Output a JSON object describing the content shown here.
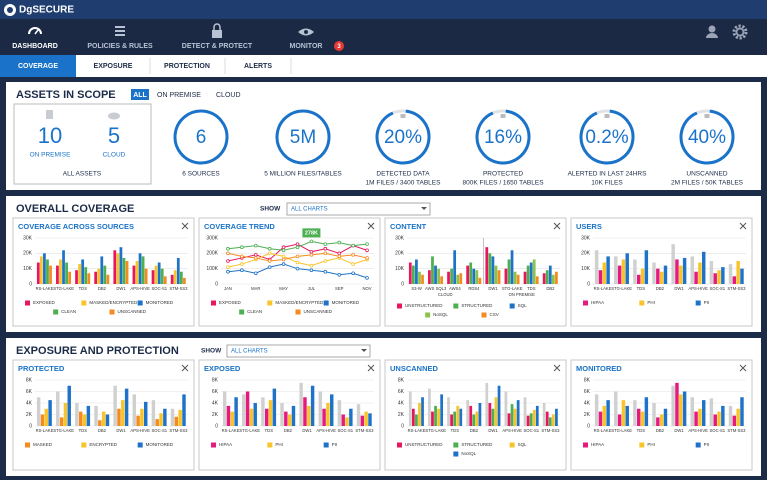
{
  "header": {
    "logo": "DgSECURE",
    "nav": [
      {
        "label": "DASHBOARD"
      },
      {
        "label": "POLICIES & RULES"
      },
      {
        "label": "DETECT & PROTECT"
      },
      {
        "label": "MONITOR",
        "badge": 3
      }
    ]
  },
  "tabs": [
    "COVERAGE",
    "EXPOSURE",
    "PROTECTION",
    "ALERTS"
  ],
  "assets": {
    "title": "ASSETS IN SCOPE",
    "filters": [
      "ALL",
      "ON PREMISE",
      "CLOUD"
    ],
    "on_premise": {
      "value": 10,
      "label": "ON PREMISE"
    },
    "cloud": {
      "value": 5,
      "label": "CLOUD"
    },
    "total_label": "ALL ASSETS",
    "metrics": [
      {
        "big": 6,
        "caption": "6 SOURCES"
      },
      {
        "big": "5M",
        "caption": "5 MILLION FILES/TABLES"
      },
      {
        "big": "20%",
        "caption": "DETECTED DATA",
        "detail": "1M FILES / 3400 TABLES"
      },
      {
        "big": "16%",
        "caption": "PROTECTED",
        "detail": "800K FILES / 1650 TABLES"
      },
      {
        "big": "0.2%",
        "caption": "ALERTED IN LAST 24HRS",
        "detail": "10K FILES"
      },
      {
        "big": "40%",
        "caption": "UNSCANNED",
        "detail": "2M FILES / 50K TABLES"
      }
    ]
  },
  "overall_coverage": {
    "title": "OVERALL COVERAGE",
    "show_label": "SHOW",
    "dropdown": "ALL CHARTS"
  },
  "exposure_protection": {
    "title": "EXPOSURE AND PROTECTION",
    "show_label": "SHOW",
    "dropdown": "ALL CHARTS"
  },
  "chart_data": [
    {
      "type": "bar",
      "title": "COVERAGE ACROSS SOURCES",
      "grid": true,
      "ylim": [
        0,
        30000
      ],
      "yticks": [
        0,
        {
          "value": 10000,
          "label": "10K"
        },
        {
          "value": 20000,
          "label": "20K"
        },
        {
          "value": 30000,
          "label": "30K"
        }
      ],
      "categories": [
        "RS-LAKE",
        "STG-LAKE",
        "TDS",
        "DB2",
        "DW1",
        "APS-HIVE",
        "SOC-S1",
        "STM-SS3"
      ],
      "series": [
        {
          "name": "EXPOSED",
          "color": "#e8175d",
          "values": [
            14000,
            12000,
            9000,
            8000,
            22000,
            12000,
            9000,
            6000
          ]
        },
        {
          "name": "MASKED/ENCRYPTED",
          "color": "#f8c42a",
          "values": [
            18000,
            16000,
            13000,
            10000,
            20000,
            15000,
            12000,
            9000
          ]
        },
        {
          "name": "MONITORED",
          "color": "#1e73c8",
          "values": [
            20000,
            22000,
            16000,
            18000,
            24000,
            20000,
            14000,
            17000
          ]
        },
        {
          "name": "CLEAN",
          "color": "#4caf50",
          "values": [
            16000,
            14000,
            11000,
            12000,
            17000,
            18000,
            10000,
            8000
          ]
        },
        {
          "name": "UNSCANNED",
          "color": "#f58a1f",
          "values": [
            12000,
            8000,
            7000,
            6000,
            15000,
            10000,
            5000,
            4000
          ]
        }
      ]
    },
    {
      "type": "line",
      "title": "COVERAGE TREND",
      "grid": true,
      "annotation": "278K",
      "ylim": [
        0,
        300000
      ],
      "yticks": [
        0,
        {
          "value": 100000,
          "label": "100K"
        },
        {
          "value": 200000,
          "label": "200K"
        },
        {
          "value": 300000,
          "label": "300K"
        }
      ],
      "categories": [
        "JAN",
        null,
        "MAR",
        null,
        "MAY",
        null,
        "JUL",
        null,
        "SEP",
        null,
        "NOV"
      ],
      "series": [
        {
          "name": "EXPOSED",
          "color": "#e8175d",
          "values": [
            150000,
            170000,
            190000,
            160000,
            240000,
            260000,
            210000,
            230000,
            200000,
            250000,
            220000
          ]
        },
        {
          "name": "MASKED/ENCRYPTED",
          "color": "#f8c42a",
          "values": [
            110000,
            130000,
            160000,
            200000,
            180000,
            140000,
            120000,
            150000,
            170000,
            130000,
            160000
          ]
        },
        {
          "name": "MONITORED",
          "color": "#1e73c8",
          "values": [
            80000,
            90000,
            70000,
            110000,
            130000,
            100000,
            90000,
            80000,
            60000,
            70000,
            40000
          ]
        },
        {
          "name": "CLEAN",
          "color": "#4caf50",
          "values": [
            230000,
            240000,
            250000,
            230000,
            220000,
            240000,
            278000,
            260000,
            270000,
            250000,
            260000
          ]
        },
        {
          "name": "UNSCANNED",
          "color": "#f58a1f",
          "values": [
            200000,
            180000,
            170000,
            150000,
            160000,
            180000,
            190000,
            200000,
            180000,
            190000,
            170000
          ]
        }
      ]
    },
    {
      "type": "bar",
      "title": "CONTENT",
      "grid": true,
      "ylim": [
        0,
        30000
      ],
      "yticks": [
        0,
        {
          "value": 10000,
          "label": "10K"
        },
        {
          "value": 20000,
          "label": "20K"
        },
        {
          "value": 30000,
          "label": "30K"
        }
      ],
      "categories": [
        "S3-W",
        "AWS SQL3",
        "AWS4",
        "RDS4",
        "DW1",
        "STG-LAKE",
        "TDS",
        "DB2"
      ],
      "category_groups": [
        "CLOUD",
        "ON PREMISE"
      ],
      "series": [
        {
          "name": "UNSTRUCTURED",
          "color": "#e8175d",
          "values": [
            14000,
            9000,
            8000,
            12000,
            24000,
            10000,
            8000,
            7000
          ]
        },
        {
          "name": "STRUCTURED",
          "color": "#4caf50",
          "values": [
            12000,
            18000,
            10000,
            14000,
            20000,
            16000,
            12000,
            9000
          ]
        },
        {
          "name": "SQL",
          "color": "#1e73c8",
          "values": [
            16000,
            12000,
            22000,
            10000,
            18000,
            22000,
            14000,
            12000
          ]
        },
        {
          "name": "NoSQL",
          "color": "#8bc34a",
          "values": [
            8000,
            10000,
            6000,
            9000,
            12000,
            8000,
            16000,
            6000
          ]
        },
        {
          "name": "CSV",
          "color": "#f58a1f",
          "values": [
            6000,
            5000,
            7000,
            4000,
            9000,
            6000,
            5000,
            8000
          ]
        }
      ]
    },
    {
      "type": "bar",
      "title": "USERS",
      "grid": true,
      "ylim": [
        0,
        30000
      ],
      "yticks": [
        0,
        {
          "value": 10000,
          "label": "10K"
        },
        {
          "value": 20000,
          "label": "20K"
        },
        {
          "value": 30000,
          "label": "30K"
        }
      ],
      "categories": [
        "RS-LAKE",
        "STG-LAKE",
        "TDS",
        "DB2",
        "DW1",
        "APS-HIVE",
        "SOC-S1",
        "STM-SS3"
      ],
      "series": [
        {
          "color": "#d0d0d0",
          "values": [
            22000,
            18000,
            16000,
            14000,
            26000,
            18000,
            15000,
            13000
          ]
        },
        {
          "name": "HIPAA",
          "color": "#e6197f",
          "values": [
            9000,
            12000,
            6000,
            10000,
            16000,
            8000,
            7000,
            5000
          ]
        },
        {
          "name": "PHI",
          "color": "#f8c42a",
          "values": [
            14000,
            16000,
            10000,
            8000,
            12000,
            14000,
            9000,
            15000
          ]
        },
        {
          "name": "PII",
          "color": "#1e73c8",
          "values": [
            18000,
            20000,
            22000,
            12000,
            17000,
            21000,
            11000,
            10000
          ]
        }
      ]
    },
    {
      "type": "bar",
      "title": "PROTECTED",
      "grid": true,
      "ylim": [
        0,
        8000
      ],
      "yticks": [
        0,
        {
          "value": 2000,
          "label": "2K"
        },
        {
          "value": 4000,
          "label": "4K"
        },
        {
          "value": 6000,
          "label": "6K"
        },
        {
          "value": 8000,
          "label": "8K"
        }
      ],
      "categories": [
        "RS-LAKE",
        "STG-LAKE",
        "TDS",
        "DB2",
        "DW1",
        "APS-HIVE",
        "SOC-S1",
        "STM-SS3"
      ],
      "series": [
        {
          "color": "#d0d0d0",
          "values": [
            5000,
            6000,
            4000,
            3500,
            7000,
            5500,
            4500,
            3000
          ]
        },
        {
          "name": "MASKED",
          "color": "#f58a1f",
          "values": [
            2000,
            1500,
            2500,
            1000,
            3000,
            1800,
            1200,
            1600
          ]
        },
        {
          "name": "ENCRYPTED",
          "color": "#f8c42a",
          "values": [
            3000,
            4000,
            2000,
            2500,
            4500,
            3000,
            2200,
            2800
          ]
        },
        {
          "name": "MONITORED",
          "color": "#1e73c8",
          "values": [
            4500,
            7000,
            3500,
            2000,
            6500,
            4200,
            3000,
            5500
          ]
        }
      ]
    },
    {
      "type": "bar",
      "title": "EXPOSED",
      "grid": true,
      "ylim": [
        0,
        8000
      ],
      "yticks": [
        0,
        {
          "value": 2000,
          "label": "2K"
        },
        {
          "value": 4000,
          "label": "4K"
        },
        {
          "value": 6000,
          "label": "6K"
        },
        {
          "value": 8000,
          "label": "8K"
        }
      ],
      "categories": [
        "RS-LAKE",
        "STG-LAKE",
        "TDS",
        "DB2",
        "DW1",
        "APS-HIVE",
        "SOC-S1",
        "STM-SS3"
      ],
      "series": [
        {
          "color": "#d0d0d0",
          "values": [
            6000,
            5500,
            5000,
            4000,
            7500,
            6000,
            4500,
            3800
          ]
        },
        {
          "name": "HIPAA",
          "color": "#e6197f",
          "values": [
            3500,
            6000,
            3000,
            2500,
            5000,
            3000,
            2000,
            1800
          ]
        },
        {
          "name": "PHI",
          "color": "#f8c42a",
          "values": [
            2500,
            3000,
            4500,
            2000,
            3500,
            4000,
            1500,
            2500
          ]
        },
        {
          "name": "PII",
          "color": "#1e73c8",
          "values": [
            5000,
            4000,
            6500,
            3500,
            7000,
            5500,
            3000,
            2200
          ]
        }
      ]
    },
    {
      "type": "bar",
      "title": "UNSCANNED",
      "grid": true,
      "ylim": [
        0,
        8000
      ],
      "yticks": [
        0,
        {
          "value": 2000,
          "label": "2K"
        },
        {
          "value": 4000,
          "label": "4K"
        },
        {
          "value": 6000,
          "label": "6K"
        },
        {
          "value": 8000,
          "label": "8K"
        }
      ],
      "categories": [
        "RS-LAKE",
        "STG-LAKE",
        "TDS",
        "DB2",
        "DW1",
        "APS-HIVE",
        "SOC-S1",
        "STM-SS3"
      ],
      "series": [
        {
          "color": "#d0d0d0",
          "values": [
            6000,
            6500,
            5000,
            4500,
            7500,
            6000,
            5000,
            4000
          ]
        },
        {
          "name": "UNSTRUCTURED",
          "color": "#e8175d",
          "values": [
            3000,
            2500,
            2000,
            3500,
            4000,
            2200,
            1800,
            2500
          ]
        },
        {
          "name": "STRUCTURED",
          "color": "#4caf50",
          "values": [
            2000,
            3500,
            2500,
            2000,
            3000,
            3800,
            2200,
            1500
          ]
        },
        {
          "name": "SQL",
          "color": "#f8c42a",
          "values": [
            4000,
            3000,
            3500,
            2500,
            5000,
            3000,
            2800,
            2000
          ]
        },
        {
          "name": "NoSQL",
          "color": "#1e73c8",
          "values": [
            5000,
            5500,
            3000,
            4000,
            7000,
            4500,
            3500,
            3000
          ]
        }
      ]
    },
    {
      "type": "bar",
      "title": "MONITORED",
      "grid": true,
      "ylim": [
        0,
        8000
      ],
      "yticks": [
        0,
        {
          "value": 2000,
          "label": "2K"
        },
        {
          "value": 4000,
          "label": "4K"
        },
        {
          "value": 6000,
          "label": "6K"
        },
        {
          "value": 8000,
          "label": "8K"
        }
      ],
      "categories": [
        "RS-LAKE",
        "STG-LAKE",
        "TDS",
        "DB2",
        "DW1",
        "APS-HIVE",
        "SOC-S1",
        "STM-SS3"
      ],
      "series": [
        {
          "color": "#d0d0d0",
          "values": [
            5500,
            6000,
            4500,
            4000,
            7000,
            5000,
            4800,
            3500
          ]
        },
        {
          "name": "HIPAA",
          "color": "#e6197f",
          "values": [
            2500,
            2000,
            3000,
            1500,
            7500,
            2500,
            2000,
            1800
          ]
        },
        {
          "name": "PHI",
          "color": "#f8c42a",
          "values": [
            3500,
            4500,
            2500,
            2000,
            5500,
            3000,
            2500,
            3000
          ]
        },
        {
          "name": "PII",
          "color": "#1e73c8",
          "values": [
            4500,
            3500,
            5000,
            3000,
            6000,
            4500,
            3500,
            5000
          ]
        }
      ]
    }
  ]
}
